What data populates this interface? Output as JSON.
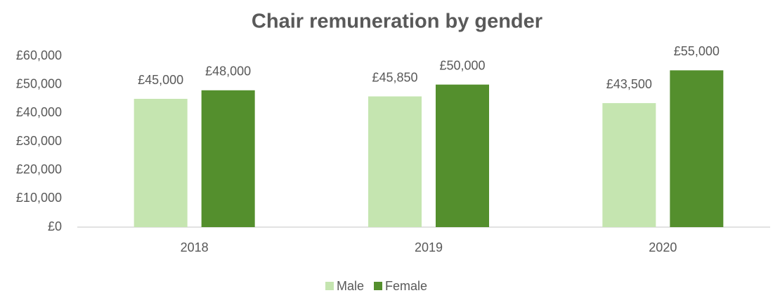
{
  "chart_data": {
    "type": "bar",
    "title": "Chair remuneration by gender",
    "categories": [
      "2018",
      "2019",
      "2020"
    ],
    "series": [
      {
        "name": "Male",
        "color": "#c5e5b0",
        "values": [
          45000,
          45850,
          43500
        ],
        "value_labels": [
          "£45,000",
          "£45,850",
          "£43,500"
        ]
      },
      {
        "name": "Female",
        "color": "#548f2d",
        "values": [
          48000,
          50000,
          55000
        ],
        "value_labels": [
          "£48,000",
          "£50,000",
          "£55,000"
        ]
      }
    ],
    "ylim": [
      0,
      60000
    ],
    "yticks": [
      {
        "value": 0,
        "label": "£0"
      },
      {
        "value": 10000,
        "label": "£10,000"
      },
      {
        "value": 20000,
        "label": "£20,000"
      },
      {
        "value": 30000,
        "label": "£30,000"
      },
      {
        "value": 40000,
        "label": "£40,000"
      },
      {
        "value": 50000,
        "label": "£50,000"
      },
      {
        "value": 60000,
        "label": "£60,000"
      }
    ],
    "grid": false,
    "legend": "bottom"
  }
}
